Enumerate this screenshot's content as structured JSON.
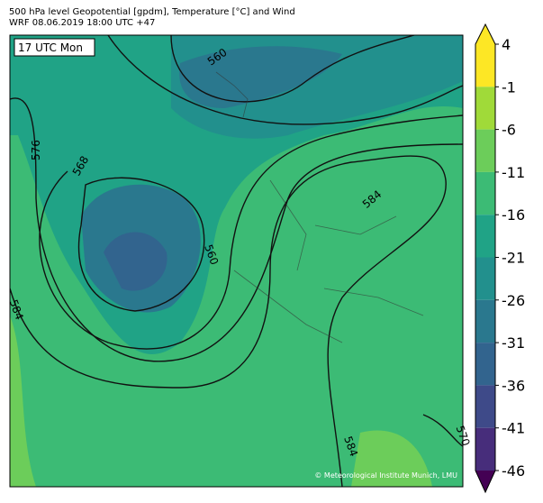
{
  "header": {
    "title": "500 hPa level Geopotential [gpdm], Temperature [°C] and Wind",
    "subtitle": "WRF 08.06.2019 18:00 UTC +47"
  },
  "map": {
    "time_label": "17 UTC Mon",
    "contour_labels": [
      "560",
      "568",
      "576",
      "584",
      "560",
      "584",
      "584",
      "570"
    ],
    "credit": "© Meteorological Institute Munich, LMU"
  },
  "colorbar": {
    "ticks": [
      4,
      -1,
      -6,
      -11,
      -16,
      -21,
      -26,
      -31,
      -36,
      -41,
      -46
    ],
    "colors": [
      "#fde725",
      "#a0da39",
      "#6ccd5a",
      "#3cbb75",
      "#20a386",
      "#22908d",
      "#2a788e",
      "#32648e",
      "#3e4a89",
      "#472d7b",
      "#440154"
    ]
  }
}
